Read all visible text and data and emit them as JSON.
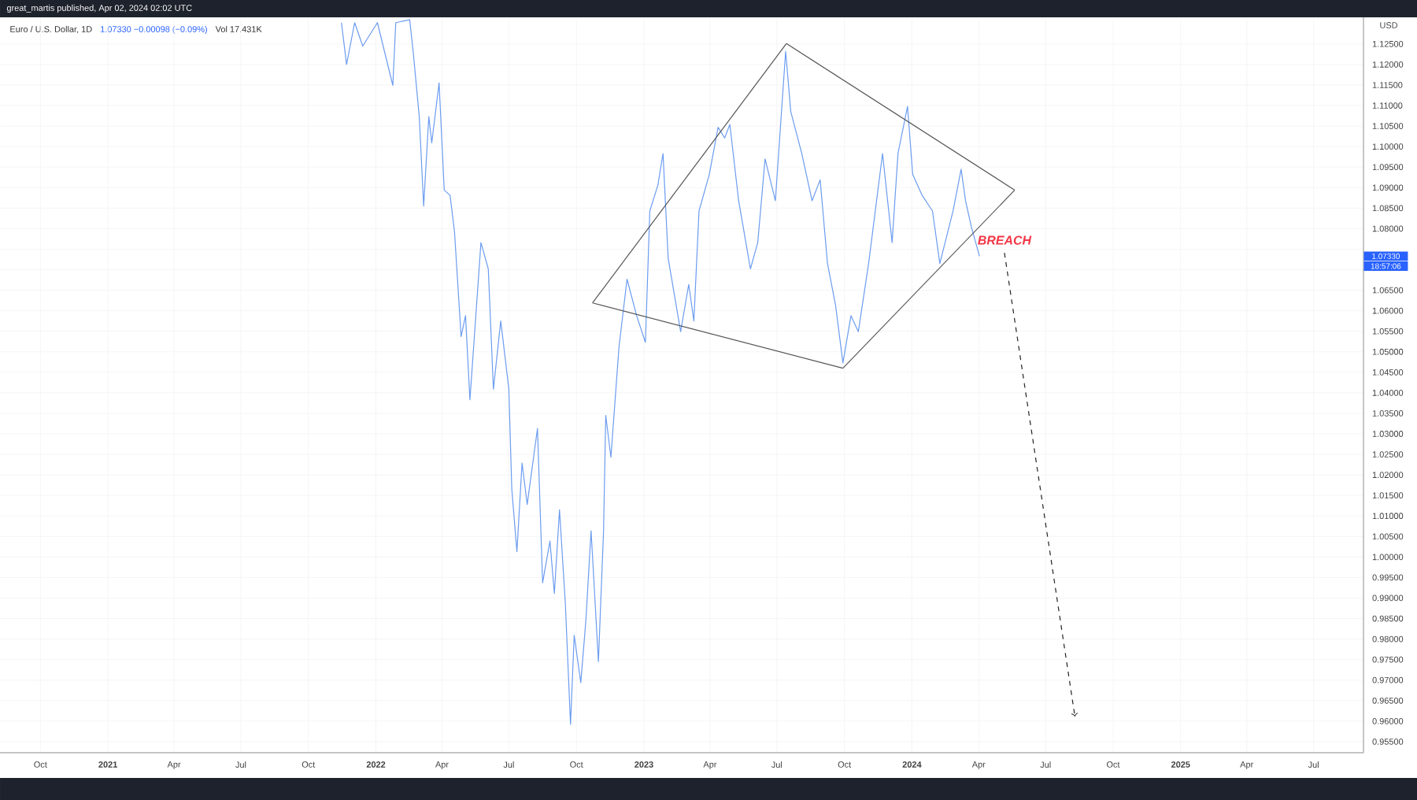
{
  "chart_data": {
    "type": "line",
    "title": "Euro / U.S. Dollar, 1D",
    "ylabel": "USD",
    "annotations": [
      "great_martis published, Apr 02, 2024 02:02 UTC",
      "1.07330 −0.00098 (−0.09%)",
      "Vol 17.431K",
      "BREACH",
      "1.07330",
      "18:57:06"
    ],
    "xlim": [
      "2020-08-07",
      "2025-09-07"
    ],
    "ylim": [
      0.9523,
      1.1315
    ],
    "xticks": [
      {
        "value": "2020-10-01",
        "label": "Oct"
      },
      {
        "value": "2021-01-01",
        "label": "2021"
      },
      {
        "value": "2021-04-01",
        "label": "Apr"
      },
      {
        "value": "2021-07-01",
        "label": "Jul"
      },
      {
        "value": "2021-10-01",
        "label": "Oct"
      },
      {
        "value": "2022-01-01",
        "label": "2022"
      },
      {
        "value": "2022-04-01",
        "label": "Apr"
      },
      {
        "value": "2022-07-01",
        "label": "Jul"
      },
      {
        "value": "2022-10-01",
        "label": "Oct"
      },
      {
        "value": "2023-01-01",
        "label": "2023"
      },
      {
        "value": "2023-04-01",
        "label": "Apr"
      },
      {
        "value": "2023-07-01",
        "label": "Jul"
      },
      {
        "value": "2023-10-01",
        "label": "Oct"
      },
      {
        "value": "2024-01-01",
        "label": "2024"
      },
      {
        "value": "2024-04-01",
        "label": "Apr"
      },
      {
        "value": "2024-07-01",
        "label": "Jul"
      },
      {
        "value": "2024-10-01",
        "label": "Oct"
      },
      {
        "value": "2025-01-01",
        "label": "2025"
      },
      {
        "value": "2025-04-01",
        "label": "Apr"
      },
      {
        "value": "2025-07-01",
        "label": "Jul"
      }
    ],
    "yticks": [
      {
        "value": 0.955,
        "label": "0.95500"
      },
      {
        "value": 0.96,
        "label": "0.96000"
      },
      {
        "value": 0.965,
        "label": "0.96500"
      },
      {
        "value": 0.97,
        "label": "0.97000"
      },
      {
        "value": 0.975,
        "label": "0.97500"
      },
      {
        "value": 0.98,
        "label": "0.98000"
      },
      {
        "value": 0.985,
        "label": "0.98500"
      },
      {
        "value": 0.99,
        "label": "0.99000"
      },
      {
        "value": 0.995,
        "label": "0.99500"
      },
      {
        "value": 1.0,
        "label": "1.00000"
      },
      {
        "value": 1.005,
        "label": "1.00500"
      },
      {
        "value": 1.01,
        "label": "1.01000"
      },
      {
        "value": 1.015,
        "label": "1.01500"
      },
      {
        "value": 1.02,
        "label": "1.02000"
      },
      {
        "value": 1.025,
        "label": "1.02500"
      },
      {
        "value": 1.03,
        "label": "1.03000"
      },
      {
        "value": 1.035,
        "label": "1.03500"
      },
      {
        "value": 1.04,
        "label": "1.04000"
      },
      {
        "value": 1.045,
        "label": "1.04500"
      },
      {
        "value": 1.05,
        "label": "1.05000"
      },
      {
        "value": 1.055,
        "label": "1.05500"
      },
      {
        "value": 1.06,
        "label": "1.06000"
      },
      {
        "value": 1.065,
        "label": "1.06500"
      },
      {
        "value": 1.07,
        "label": null
      },
      {
        "value": 1.075,
        "label": null
      },
      {
        "value": 1.08,
        "label": "1.08000"
      },
      {
        "value": 1.085,
        "label": "1.08500"
      },
      {
        "value": 1.09,
        "label": "1.09000"
      },
      {
        "value": 1.095,
        "label": "1.09500"
      },
      {
        "value": 1.1,
        "label": "1.10000"
      },
      {
        "value": 1.105,
        "label": "1.10500"
      },
      {
        "value": 1.11,
        "label": "1.11000"
      },
      {
        "value": 1.115,
        "label": "1.11500"
      },
      {
        "value": 1.12,
        "label": "1.12000"
      },
      {
        "value": 1.125,
        "label": "1.12500"
      }
    ],
    "grid": true,
    "series": [
      {
        "color": "#6b9cf0",
        "x": [
          "2021-11-15",
          "2021-11-22",
          "2021-12-03",
          "2021-12-14",
          "2022-01-03",
          "2022-01-24",
          "2022-01-28",
          "2022-02-16",
          "2022-02-21",
          "2022-03-01",
          "2022-03-07",
          "2022-03-14",
          "2022-03-18",
          "2022-03-28",
          "2022-04-04",
          "2022-04-12",
          "2022-04-18",
          "2022-04-27",
          "2022-05-03",
          "2022-05-09",
          "2022-05-24",
          "2022-06-03",
          "2022-06-10",
          "2022-06-20",
          "2022-07-01",
          "2022-07-05",
          "2022-07-12",
          "2022-07-19",
          "2022-07-26",
          "2022-08-09",
          "2022-08-16",
          "2022-08-26",
          "2022-09-01",
          "2022-09-08",
          "2022-09-16",
          "2022-09-23",
          "2022-09-28",
          "2022-10-07",
          "2022-10-14",
          "2022-10-21",
          "2022-10-31",
          "2022-11-07",
          "2022-11-10",
          "2022-11-17",
          "2022-11-28",
          "2022-12-09",
          "2022-12-22",
          "2023-01-03",
          "2023-01-09",
          "2023-01-20",
          "2023-01-27",
          "2023-02-03",
          "2023-02-20",
          "2023-03-03",
          "2023-03-10",
          "2023-03-17",
          "2023-03-31",
          "2023-04-12",
          "2023-04-21",
          "2023-04-28",
          "2023-05-10",
          "2023-05-26",
          "2023-06-05",
          "2023-06-15",
          "2023-06-29",
          "2023-07-13",
          "2023-07-20",
          "2023-08-04",
          "2023-08-18",
          "2023-08-29",
          "2023-09-08",
          "2023-09-19",
          "2023-09-29",
          "2023-10-10",
          "2023-10-20",
          "2023-11-03",
          "2023-11-22",
          "2023-12-05",
          "2023-12-13",
          "2023-12-26",
          "2024-01-02",
          "2024-01-15",
          "2024-01-29",
          "2024-02-08",
          "2024-02-26",
          "2024-03-08",
          "2024-03-14",
          "2024-03-22",
          "2024-04-02"
        ],
        "values": [
          1.1302,
          1.12,
          1.1302,
          1.1245,
          1.1302,
          1.1149,
          1.1302,
          1.1309,
          1.1226,
          1.1073,
          1.0855,
          1.1073,
          1.1009,
          1.1155,
          1.0894,
          1.0881,
          1.0792,
          1.0537,
          1.0588,
          1.0383,
          1.0766,
          1.0702,
          1.0409,
          1.0575,
          1.0409,
          1.0166,
          1.0013,
          1.0229,
          1.0128,
          1.0313,
          0.9937,
          1.0039,
          0.9911,
          1.0115,
          0.9885,
          0.9592,
          0.9809,
          0.9694,
          0.9847,
          1.0064,
          0.9745,
          1.0064,
          1.0345,
          1.0243,
          1.0511,
          1.0677,
          1.0588,
          1.0523,
          1.0843,
          1.0906,
          1.0983,
          1.0728,
          1.0549,
          1.0664,
          1.0575,
          1.0843,
          1.0932,
          1.1047,
          1.1021,
          1.1054,
          1.0868,
          1.0702,
          1.0766,
          1.097,
          1.0868,
          1.1232,
          1.1085,
          1.0983,
          1.0868,
          1.0919,
          1.0715,
          1.0613,
          1.0473,
          1.0588,
          1.0549,
          1.0715,
          1.0983,
          1.0766,
          1.0983,
          1.1098,
          1.0932,
          1.0881,
          1.0843,
          1.0715,
          1.0843,
          1.0945,
          1.0868,
          1.0804,
          1.0733
        ]
      },
      {
        "color": "#555555",
        "x": [
          "2022-10-23",
          "2023-07-14"
        ],
        "values": [
          1.0619,
          1.1251
        ]
      },
      {
        "color": "#555555",
        "x": [
          "2023-07-14",
          "2024-05-20"
        ],
        "values": [
          1.1251,
          1.0894
        ]
      },
      {
        "color": "#555555",
        "x": [
          "2023-09-29",
          "2024-05-20"
        ],
        "values": [
          1.046,
          1.0894
        ]
      },
      {
        "color": "#555555",
        "x": [
          "2022-10-23",
          "2023-09-29"
        ],
        "values": [
          1.0619,
          1.046
        ]
      },
      {
        "color": "#222222",
        "line_style": "dashed",
        "x": [
          "2024-05-06",
          "2024-08-10"
        ],
        "values": [
          1.0741,
          0.9611
        ]
      }
    ]
  }
}
